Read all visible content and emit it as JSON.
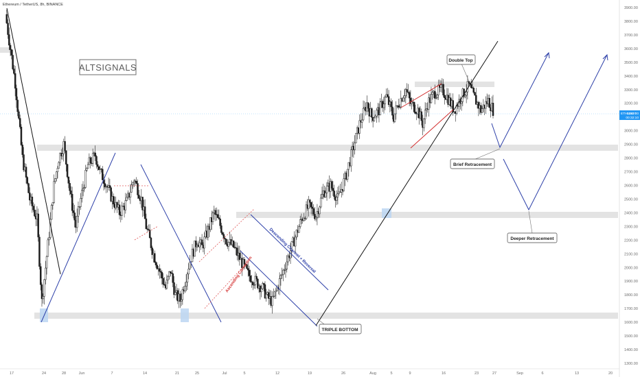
{
  "header": {
    "symbol": "Ethereum / TetherUS, 8h, BINANCE"
  },
  "watermark": {
    "text": "ALTSIGNALS"
  },
  "price_tag": {
    "symbol": "ETHUSDT",
    "price": "3153.00",
    "countdown": "00:32:10"
  },
  "annotations": {
    "double_top": "Double Top",
    "brief_retracement": "Brief Retracement",
    "deeper_retracement": "Deeper Retracement",
    "triple_bottom": "TRIPLE BOTTOM",
    "ascending_correction": "Ascending Correction",
    "descending_channel": "Descending Channel + Reversal"
  },
  "colors": {
    "up_candle": "#1f1f1f",
    "down_candle": "#1f1f1f",
    "trendline_blue": "#2c3fa8",
    "trendline_black": "#111111",
    "wedge_red": "#d32f2f",
    "dashed_red": "#e05555",
    "zone_gray": "#d9d9d9",
    "zone_highlight": "#bcd6f2",
    "price_tag": "#2196f3",
    "axis_text": "#6b6b6b"
  },
  "chart_data": {
    "type": "candlestick",
    "title": "Ethereum / TetherUS, 8h, BINANCE",
    "x_tick_labels": [
      "17",
      "24",
      "28",
      "Jun",
      "7",
      "14",
      "21",
      "25",
      "Jul",
      "5",
      "12",
      "19",
      "26",
      "Aug",
      "5",
      "9",
      "16",
      "23",
      "27",
      "Sep",
      "6",
      "13",
      "20"
    ],
    "y_tick_labels": [
      "1300.00",
      "1400.00",
      "1500.00",
      "1600.00",
      "1700.00",
      "1800.00",
      "1900.00",
      "2000.00",
      "2100.00",
      "2200.00",
      "2300.00",
      "2400.00",
      "2500.00",
      "2600.00",
      "2700.00",
      "2800.00",
      "2900.00",
      "3000.00",
      "3100.00",
      "3200.00",
      "3300.00",
      "3400.00",
      "3500.00",
      "3600.00",
      "3700.00",
      "3800.00",
      "3900.00"
    ],
    "ylim": [
      1300,
      3930
    ],
    "last_price": 3153,
    "price_path": [
      [
        0,
        3850
      ],
      [
        2,
        3600
      ],
      [
        4,
        3350
      ],
      [
        7,
        2800
      ],
      [
        10,
        2500
      ],
      [
        13,
        2350
      ],
      [
        15,
        1750
      ],
      [
        18,
        2250
      ],
      [
        20,
        2600
      ],
      [
        22,
        2800
      ],
      [
        24,
        2900
      ],
      [
        27,
        2500
      ],
      [
        29,
        2300
      ],
      [
        31,
        2500
      ],
      [
        34,
        2750
      ],
      [
        37,
        2820
      ],
      [
        39,
        2700
      ],
      [
        41,
        2630
      ],
      [
        44,
        2500
      ],
      [
        47,
        2400
      ],
      [
        50,
        2480
      ],
      [
        53,
        2650
      ],
      [
        56,
        2500
      ],
      [
        58,
        2300
      ],
      [
        61,
        2100
      ],
      [
        64,
        1950
      ],
      [
        66,
        1850
      ],
      [
        68,
        1980
      ],
      [
        70,
        1800
      ],
      [
        72,
        1760
      ],
      [
        74,
        1900
      ],
      [
        76,
        2050
      ],
      [
        79,
        2200
      ],
      [
        81,
        2150
      ],
      [
        84,
        2300
      ],
      [
        86,
        2400
      ],
      [
        88,
        2330
      ],
      [
        91,
        2200
      ],
      [
        94,
        2150
      ],
      [
        97,
        2050
      ],
      [
        100,
        1950
      ],
      [
        103,
        1900
      ],
      [
        106,
        1850
      ],
      [
        108,
        1780
      ],
      [
        110,
        1750
      ],
      [
        113,
        1900
      ],
      [
        116,
        2050
      ],
      [
        119,
        2200
      ],
      [
        122,
        2350
      ],
      [
        125,
        2450
      ],
      [
        128,
        2380
      ],
      [
        131,
        2550
      ],
      [
        134,
        2600
      ],
      [
        137,
        2500
      ],
      [
        140,
        2650
      ],
      [
        143,
        2850
      ],
      [
        146,
        3050
      ],
      [
        149,
        3200
      ],
      [
        151,
        3100
      ],
      [
        154,
        3150
      ],
      [
        157,
        3250
      ],
      [
        160,
        3100
      ],
      [
        162,
        3200
      ],
      [
        165,
        3300
      ],
      [
        167,
        3200
      ],
      [
        170,
        3150
      ],
      [
        172,
        3050
      ],
      [
        174,
        3200
      ],
      [
        177,
        3280
      ],
      [
        180,
        3300
      ],
      [
        182,
        3250
      ],
      [
        185,
        3150
      ],
      [
        188,
        3250
      ],
      [
        191,
        3330
      ],
      [
        193,
        3250
      ],
      [
        196,
        3150
      ],
      [
        199,
        3220
      ],
      [
        201,
        3153
      ]
    ],
    "levels": {
      "top_resistance": [
        3300,
        3340
      ],
      "mid_support": [
        2870,
        2910
      ],
      "deep_support": [
        2400,
        2450
      ],
      "bottom_support": [
        1730,
        1770
      ]
    },
    "projection_points": [
      {
        "label": "Brief Retracement",
        "price": 2890
      },
      {
        "label": "Deeper Retracement",
        "price": 2460
      }
    ],
    "grid": false,
    "legend": "none"
  }
}
